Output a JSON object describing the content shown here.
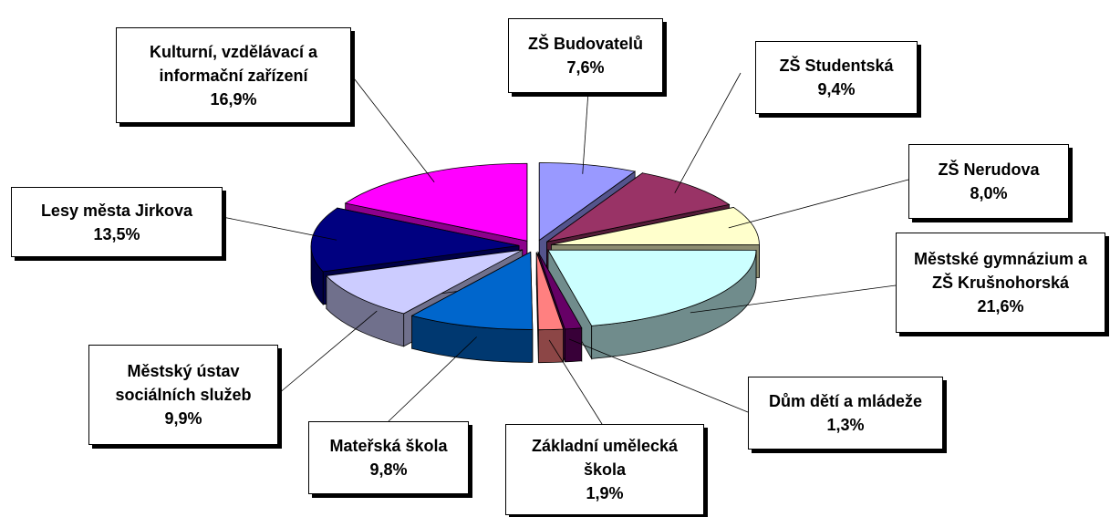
{
  "chart_data": {
    "type": "pie3d",
    "categories": [
      "ZŠ Budovatelů",
      "ZŠ Studentská",
      "ZŠ Nerudova",
      "Městské gymnázium a ZŠ Krušnohorská",
      "Dům dětí a mládeže",
      "Základní umělecká škola",
      "Mateřská škola",
      "Městský ústav sociálních služeb",
      "Lesy města Jirkova",
      "Kulturní, vzdělávací a informační zařízení"
    ],
    "values": [
      7.6,
      9.4,
      8.0,
      21.6,
      1.3,
      1.9,
      9.8,
      9.9,
      13.5,
      16.9
    ],
    "value_labels": [
      "7,6%",
      "9,4%",
      "8,0%",
      "21,6%",
      "1,3%",
      "1,9%",
      "9,8%",
      "9,9%",
      "13,5%",
      "16,9%"
    ],
    "colors": [
      "#9999ff",
      "#993366",
      "#ffffcc",
      "#ccffff",
      "#660066",
      "#ff8080",
      "#0066cc",
      "#ccccff",
      "#000080",
      "#ff00ff"
    ]
  }
}
